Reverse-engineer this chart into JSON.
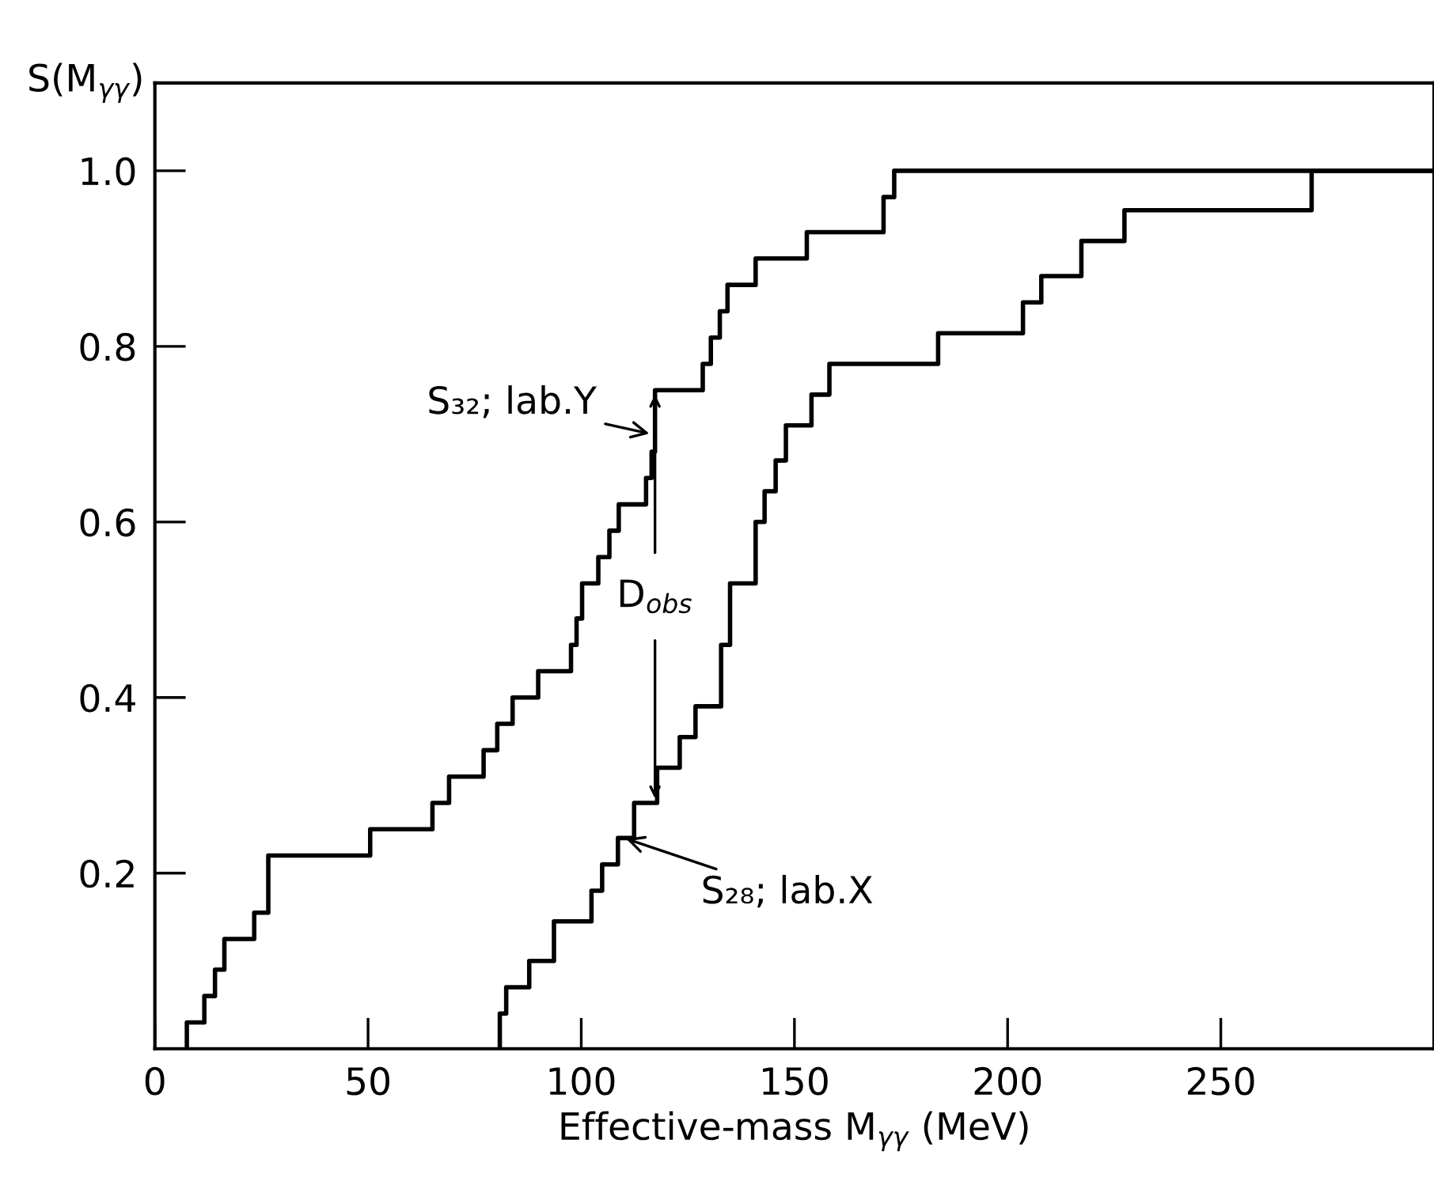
{
  "chart_data": {
    "type": "step",
    "xlabel": "Effective-mass M$_{γγ}$ (MeV)",
    "ylabel": "S(M$_{γγ}$)",
    "series": [
      {
        "color": "#000000",
        "x": [
          7.5,
          7.5,
          11.6,
          14.1,
          16.3,
          23.3,
          26.6,
          50.5,
          65.1,
          69,
          77.1,
          80.3,
          83.9,
          89.9,
          97.6,
          98.9,
          100.2,
          104,
          106.6,
          108.8,
          115.2,
          116.5,
          117.3,
          128.5,
          130.4,
          132.5,
          134.3,
          140.9,
          152.9,
          170.9,
          173.4,
          300
        ],
        "values": [
          0,
          0.03,
          0.06,
          0.09,
          0.125,
          0.155,
          0.22,
          0.25,
          0.28,
          0.31,
          0.34,
          0.37,
          0.4,
          0.43,
          0.46,
          0.49,
          0.53,
          0.56,
          0.59,
          0.62,
          0.65,
          0.68,
          0.75,
          0.78,
          0.81,
          0.84,
          0.87,
          0.9,
          0.93,
          0.97,
          1.0,
          1.0
        ]
      },
      {
        "color": "#000000",
        "x": [
          80.9,
          80.9,
          82.4,
          87.8,
          93.6,
          102.4,
          104.9,
          108.6,
          112.4,
          117.8,
          123.1,
          126.8,
          132.8,
          134.9,
          140.9,
          143,
          145.6,
          148,
          154,
          158.2,
          183.7,
          203.6,
          207.9,
          217.3,
          227.4,
          271.3,
          300
        ],
        "values": [
          0,
          0.04,
          0.07,
          0.1,
          0.145,
          0.18,
          0.21,
          0.24,
          0.28,
          0.32,
          0.355,
          0.39,
          0.46,
          0.53,
          0.6,
          0.635,
          0.67,
          0.71,
          0.745,
          0.78,
          0.815,
          0.85,
          0.88,
          0.92,
          0.955,
          1.0,
          1.0
        ]
      }
    ],
    "xlim": [
      0,
      300
    ],
    "xticks": [
      0,
      50,
      100,
      150,
      200,
      250
    ],
    "ylim": [
      0,
      1.1
    ],
    "yticks": [
      0.2,
      0.4,
      0.6,
      0.8,
      {
        "value": 1.0,
        "label": "1.0"
      }
    ],
    "grid": false,
    "line_style": "solid",
    "marker": "none",
    "annotations": [
      {
        "text": "S₃₂; lab.Y",
        "x": 116.5,
        "y": 0.7
      },
      {
        "text": "D$_{obs}$",
        "x": 117.3,
        "y": 0.75
      },
      {
        "text": "S₂₈; lab.X",
        "x": 110,
        "y": 0.24
      }
    ]
  }
}
